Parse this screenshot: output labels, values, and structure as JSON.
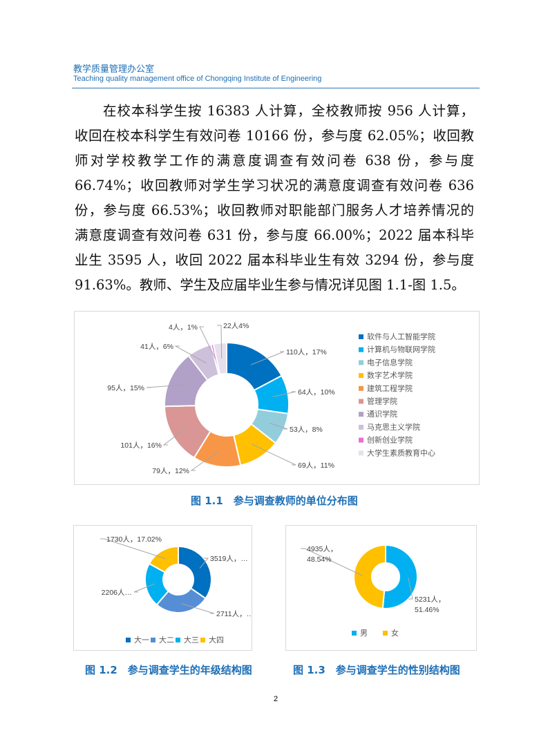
{
  "header": {
    "title_cn": "教学质量管理办公室",
    "title_en": "Teaching quality management office of Chongqing Institute of Engineering"
  },
  "body_lines": [
    "　　在校本科学生按 16383 人计算，全校教师按 956 人计算，",
    "收回在校本科学生有效问卷 10166 份，参与度 62.05%；收回教",
    "师对学校教学工作的满意度调查有效问卷 638 份，参与度",
    "66.74%；收回教师对学生学习状况的满意度调查有效问卷 636",
    "份，参与度 66.53%；收回教师对职能部门服务人才培养情况的",
    "满意度调查有效问卷 631 份，参与度 66.00%；2022 届本科毕",
    "业生 3595 人，收回 2022 届本科毕业生有效 3294 份，参与度",
    "91.63%。教师、学生及应届毕业生参与情况详见图 1.1-图 1.5。"
  ],
  "captions": {
    "fig1": "图 1.1　参与调查教师的单位分布图",
    "fig2": "图 1.2　参与调查学生的年级结构图",
    "fig3": "图 1.3　参与调查学生的性别结构图"
  },
  "page_number": "2",
  "chart_data": [
    {
      "type": "pie",
      "donut": true,
      "legend": "right",
      "categories": [
        "软件与人工智能学院",
        "计算机与物联网学院",
        "电子信息学院",
        "数字艺术学院",
        "建筑工程学院",
        "管理学院",
        "通识学院",
        "马克思主义学院",
        "创新创业学院",
        "大学生素质教育中心"
      ],
      "values": [
        110,
        64,
        53,
        69,
        79,
        101,
        95,
        41,
        4,
        22
      ],
      "data_labels": [
        "110人，17%",
        "64人，10%",
        "53人，8%",
        "69人，11%",
        "79人，12%",
        "101人，16%",
        "95人，15%",
        "41人，6%",
        "4人，1%",
        "22人4%"
      ],
      "colors": [
        "#0070c0",
        "#00b0f0",
        "#92cddc",
        "#ffc000",
        "#f79646",
        "#da9694",
        "#b1a0c7",
        "#ccc0da",
        "#e86ed8",
        "#e6e0ec"
      ]
    },
    {
      "type": "pie",
      "donut": true,
      "legend": "bottom",
      "categories": [
        "大一",
        "大二",
        "大三",
        "大四"
      ],
      "values": [
        3519,
        2711,
        2206,
        1730
      ],
      "data_labels": [
        "3519人，…",
        "2711人，…",
        "2206人…",
        "1730人，17.02%"
      ],
      "colors": [
        "#0070c0",
        "#558ed5",
        "#00b0f0",
        "#ffc000"
      ]
    },
    {
      "type": "pie",
      "donut": true,
      "legend": "bottom",
      "categories": [
        "男",
        "女"
      ],
      "values": [
        5231,
        4935
      ],
      "data_labels": [
        "5231人，\n51.46%",
        "4935人，\n48.54%"
      ],
      "colors": [
        "#00b0f0",
        "#ffc000"
      ]
    }
  ]
}
